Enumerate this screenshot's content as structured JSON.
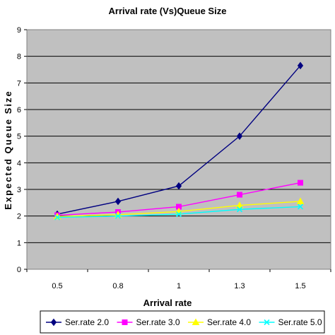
{
  "chart_data": {
    "type": "line",
    "title": "Arrival rate (Vs)Queue Size",
    "xlabel": "Arrival rate",
    "ylabel": "Expected Queue Size",
    "categories": [
      "0.5",
      "0.8",
      "1",
      "1.3",
      "1.5"
    ],
    "ylim": [
      0,
      9
    ],
    "yticks": [
      "0",
      "1",
      "2",
      "3",
      "4",
      "5",
      "6",
      "7",
      "8",
      "9"
    ],
    "grid": true,
    "plot_background": "#c0c0c0",
    "legend_position": "bottom",
    "series": [
      {
        "name": "Ser.rate 2.0",
        "color": "#000080",
        "marker": "diamond",
        "values": [
          2.07,
          2.55,
          3.13,
          5.0,
          7.65
        ]
      },
      {
        "name": "Ser.rate 3.0",
        "color": "#ff00ff",
        "marker": "square",
        "values": [
          2.03,
          2.15,
          2.35,
          2.8,
          3.25
        ]
      },
      {
        "name": "Ser.rate 4.0",
        "color": "#ffff00",
        "marker": "triangle",
        "values": [
          1.98,
          2.05,
          2.17,
          2.4,
          2.55
        ]
      },
      {
        "name": "Ser.rate 5.0",
        "color": "#00ffff",
        "marker": "x",
        "values": [
          1.95,
          2.0,
          2.07,
          2.25,
          2.35
        ]
      }
    ]
  }
}
